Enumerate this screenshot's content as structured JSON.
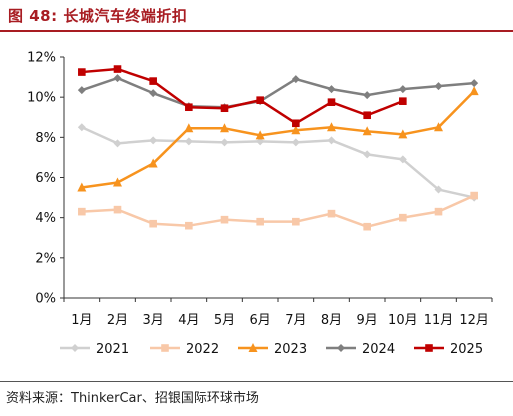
{
  "figure": {
    "title": "图 48: 长城汽车终端折扣",
    "source": "资料来源：ThinkerCar、招银国际环球市场"
  },
  "chart_data": {
    "type": "line",
    "categories": [
      "1月",
      "2月",
      "3月",
      "4月",
      "5月",
      "6月",
      "7月",
      "8月",
      "9月",
      "10月",
      "11月",
      "12月"
    ],
    "ylim": [
      0,
      12
    ],
    "yticks": [
      "0%",
      "2%",
      "4%",
      "6%",
      "8%",
      "10%",
      "12%"
    ],
    "grid": false,
    "legend_position": "bottom",
    "series": [
      {
        "name": "2021",
        "color": "#d0d0d0",
        "marker": "diamond",
        "values": [
          8.5,
          7.7,
          7.85,
          7.8,
          7.75,
          7.8,
          7.75,
          7.85,
          7.15,
          6.9,
          5.4,
          5.0
        ]
      },
      {
        "name": "2022",
        "color": "#f8c8a8",
        "marker": "square",
        "values": [
          4.3,
          4.4,
          3.7,
          3.6,
          3.9,
          3.8,
          3.8,
          4.2,
          3.55,
          4.0,
          4.3,
          5.1
        ]
      },
      {
        "name": "2023",
        "color": "#f7931e",
        "marker": "triangle",
        "values": [
          5.5,
          5.75,
          6.7,
          8.45,
          8.45,
          8.1,
          8.35,
          8.5,
          8.3,
          8.15,
          8.5,
          10.3
        ]
      },
      {
        "name": "2024",
        "color": "#7f7f7f",
        "marker": "diamond",
        "values": [
          10.35,
          10.95,
          10.2,
          9.55,
          9.5,
          9.8,
          10.9,
          10.4,
          10.1,
          10.4,
          10.55,
          10.7
        ]
      },
      {
        "name": "2025",
        "color": "#c00000",
        "marker": "square",
        "values": [
          11.25,
          11.4,
          10.8,
          9.5,
          9.45,
          9.85,
          8.7,
          9.75,
          9.1,
          9.8,
          null,
          null
        ]
      }
    ]
  }
}
